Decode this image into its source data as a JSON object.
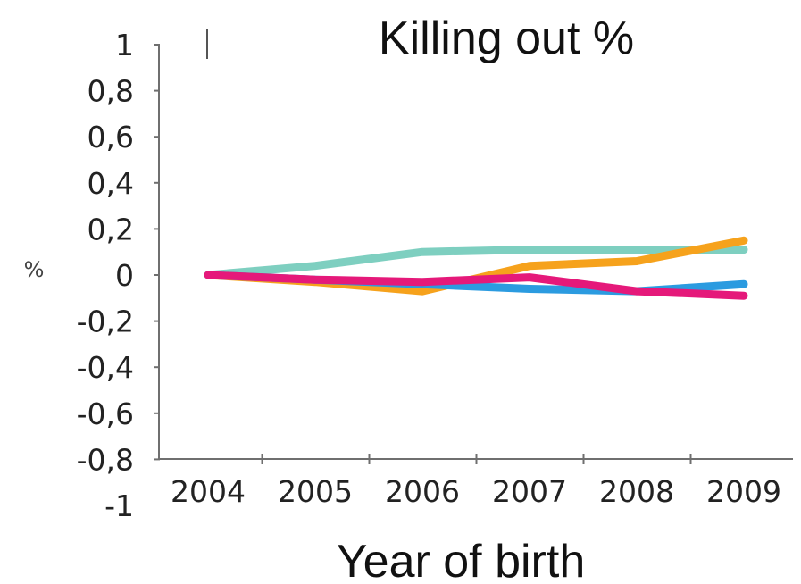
{
  "chart_data": {
    "type": "line",
    "title": "Killing out %",
    "xlabel": "Year of birth",
    "ylabel": "%",
    "categories": [
      "2004",
      "2005",
      "2006",
      "2007",
      "2008",
      "2009"
    ],
    "yticks": [
      "1",
      "0,8",
      "0,6",
      "0,4",
      "0,2",
      "0",
      "-0,2",
      "-0,4",
      "-0,6",
      "-0,8",
      "-1"
    ],
    "ylim": [
      -1,
      1
    ],
    "grid": false,
    "series": [
      {
        "color": "#7ecfc0",
        "values": [
          0,
          0.04,
          0.1,
          0.11,
          0.11,
          0.11
        ]
      },
      {
        "color": "#f6a21c",
        "values": [
          0,
          -0.03,
          -0.07,
          0.04,
          0.06,
          0.15
        ]
      },
      {
        "color": "#2b9be0",
        "values": [
          0,
          -0.02,
          -0.04,
          -0.06,
          -0.07,
          -0.04
        ]
      },
      {
        "color": "#e5197a",
        "values": [
          0,
          -0.02,
          -0.03,
          -0.01,
          -0.07,
          -0.09
        ]
      }
    ]
  }
}
